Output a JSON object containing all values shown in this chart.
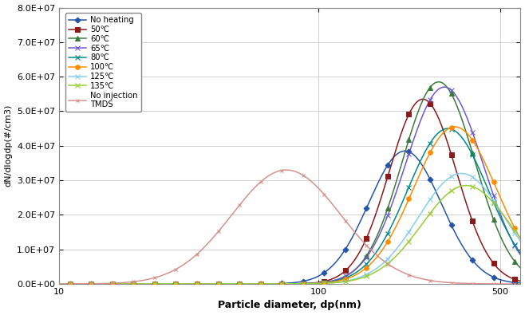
{
  "xlabel": "Particle diameter, dp(nm)",
  "ylabel": "dN/dlogdp(#/cm3)",
  "ylim": [
    0,
    80000000.0
  ],
  "yticks": [
    0,
    10000000.0,
    20000000.0,
    30000000.0,
    40000000.0,
    50000000.0,
    60000000.0,
    70000000.0,
    80000000.0
  ],
  "ytick_labels": [
    "0.0E+00",
    "1.0E+07",
    "2.0E+07",
    "3.0E+07",
    "4.0E+07",
    "5.0E+07",
    "6.0E+07",
    "7.0E+07",
    "8.0E+07"
  ],
  "series": [
    {
      "label": "No heating",
      "color": "#2255AA",
      "marker": "D",
      "markersize": 3.5,
      "peak_dp": 215,
      "peak_val": 38500000.0,
      "sigma": 0.14
    },
    {
      "label": "50℃",
      "color": "#8B1A1A",
      "marker": "s",
      "markersize": 4.0,
      "peak_dp": 252,
      "peak_val": 53500000.0,
      "sigma": 0.13
    },
    {
      "label": "60℃",
      "color": "#3B7A3B",
      "marker": "^",
      "markersize": 4.0,
      "peak_dp": 290,
      "peak_val": 58500000.0,
      "sigma": 0.14
    },
    {
      "label": "65℃",
      "color": "#6A5ACD",
      "marker": "x",
      "markersize": 4.5,
      "peak_dp": 305,
      "peak_val": 57000000.0,
      "sigma": 0.15
    },
    {
      "label": "80℃",
      "color": "#008B8B",
      "marker": "x",
      "markersize": 4.5,
      "peak_dp": 315,
      "peak_val": 45000000.0,
      "sigma": 0.155
    },
    {
      "label": "100℃",
      "color": "#FF8C00",
      "marker": "o",
      "markersize": 4.0,
      "peak_dp": 335,
      "peak_val": 45500000.0,
      "sigma": 0.16
    },
    {
      "label": "125℃",
      "color": "#87CEEB",
      "marker": "x",
      "markersize": 4.0,
      "peak_dp": 355,
      "peak_val": 32000000.0,
      "sigma": 0.165
    },
    {
      "label": "135℃",
      "color": "#9ACD32",
      "marker": "x",
      "markersize": 4.0,
      "peak_dp": 370,
      "peak_val": 28500000.0,
      "sigma": 0.17
    },
    {
      "label": "No injection\nTMDS",
      "color": "#D4928C",
      "marker": "x",
      "markersize": 3.0,
      "peak_dp": 75,
      "peak_val": 33000000.0,
      "sigma": 0.21
    }
  ],
  "background_color": "#FFFFFF",
  "grid_color": "#C8C8C8"
}
